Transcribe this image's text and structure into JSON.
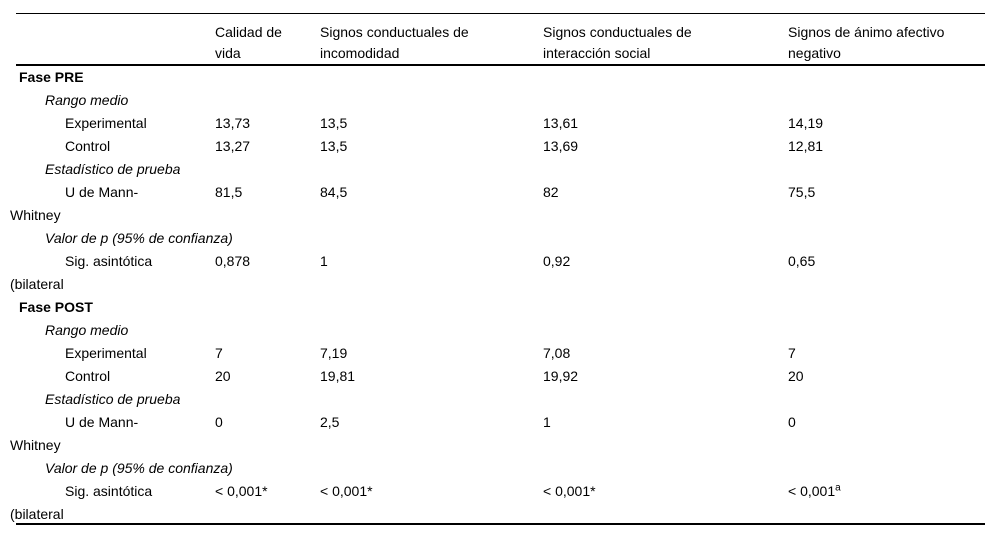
{
  "table": {
    "colors": {
      "text": "#000000",
      "background": "#ffffff",
      "rule": "#000000"
    },
    "header": {
      "row_label_column": "",
      "columns": [
        {
          "label": "Calidad de vida",
          "lines": [
            "Calidad de",
            "vida"
          ]
        },
        {
          "label": "Signos conductuales de incomodidad",
          "lines": [
            "Signos conductuales de",
            "incomodidad"
          ]
        },
        {
          "label": "Signos conductuales de interacción social",
          "lines": [
            "Signos conductuales de",
            "interacción social"
          ]
        },
        {
          "label": "Signos de ánimo afectivo negativo",
          "lines": [
            "Signos de ánimo afectivo",
            "negativo"
          ]
        }
      ]
    },
    "rows": [
      {
        "type": "section",
        "lines": [
          "Fase PRE"
        ],
        "values": [
          "",
          "",
          "",
          ""
        ]
      },
      {
        "type": "group",
        "lines": [
          "Rango medio"
        ],
        "values": [
          "",
          "",
          "",
          ""
        ]
      },
      {
        "type": "data",
        "lines": [
          "Experimental"
        ],
        "values": [
          "13,73",
          "13,5",
          "13,61",
          "14,19"
        ]
      },
      {
        "type": "data",
        "lines": [
          "Control"
        ],
        "values": [
          "13,27",
          "13,5",
          "13,69",
          "12,81"
        ]
      },
      {
        "type": "group",
        "lines": [
          "Estadístico de prueba"
        ],
        "values": [
          "",
          "",
          "",
          ""
        ]
      },
      {
        "type": "data",
        "lines": [
          "U de Mann-",
          "Whitney"
        ],
        "values": [
          "81,5",
          "84,5",
          "82",
          "75,5"
        ]
      },
      {
        "type": "group",
        "lines": [
          "Valor de p (95% de confianza)"
        ],
        "values": [
          "",
          "",
          "",
          ""
        ]
      },
      {
        "type": "data",
        "lines": [
          "Sig. asintótica",
          "(bilateral"
        ],
        "values": [
          "0,878",
          "1",
          "0,92",
          "0,65"
        ]
      },
      {
        "type": "section",
        "lines": [
          "Fase POST"
        ],
        "values": [
          "",
          "",
          "",
          ""
        ]
      },
      {
        "type": "group",
        "lines": [
          "Rango medio"
        ],
        "values": [
          "",
          "",
          "",
          ""
        ]
      },
      {
        "type": "data",
        "lines": [
          "Experimental"
        ],
        "values": [
          "7",
          "7,19",
          "7,08",
          "7"
        ]
      },
      {
        "type": "data",
        "lines": [
          "Control"
        ],
        "values": [
          "20",
          "19,81",
          "19,92",
          "20"
        ]
      },
      {
        "type": "group",
        "lines": [
          "Estadístico de prueba"
        ],
        "values": [
          "",
          "",
          "",
          ""
        ]
      },
      {
        "type": "data",
        "lines": [
          "U de Mann-",
          "Whitney"
        ],
        "values": [
          "0",
          "2,5",
          "1",
          "0"
        ]
      },
      {
        "type": "group",
        "lines": [
          "Valor de p (95% de confianza)"
        ],
        "values": [
          "",
          "",
          "",
          ""
        ]
      },
      {
        "type": "data",
        "lines": [
          "Sig. asintótica",
          "(bilateral"
        ],
        "values": [
          "< 0,001*",
          "< 0,001*",
          "< 0,001*",
          {
            "text": "< 0,001",
            "sup": "a"
          }
        ]
      }
    ]
  }
}
